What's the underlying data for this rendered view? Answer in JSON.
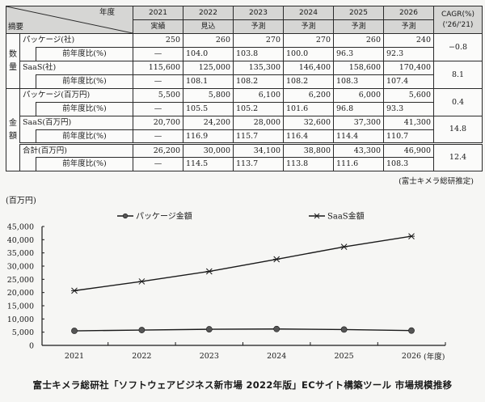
{
  "table": {
    "corner_top": "年度",
    "corner_bottom": "摘要",
    "years": [
      "2021",
      "2022",
      "2023",
      "2024",
      "2025",
      "2026"
    ],
    "status": [
      "実績",
      "見込",
      "予測",
      "予測",
      "予測",
      "予測"
    ],
    "cagr_header_line1": "CAGR(%)",
    "cagr_header_line2": "('26/'21)",
    "groups": [
      {
        "label": "数量",
        "items": [
          {
            "label": "パッケージ(社)",
            "values": [
              "250",
              "260",
              "270",
              "270",
              "260",
              "240"
            ],
            "yoy_label": "前年度比(%)",
            "yoy": [
              "—",
              "104.0",
              "103.8",
              "100.0",
              "96.3",
              "92.3"
            ],
            "cagr": "−0.8"
          },
          {
            "label": "SaaS(社)",
            "values": [
              "115,600",
              "125,000",
              "135,300",
              "146,400",
              "158,600",
              "170,400"
            ],
            "yoy_label": "前年度比(%)",
            "yoy": [
              "—",
              "108.1",
              "108.2",
              "108.2",
              "108.3",
              "107.4"
            ],
            "cagr": "8.1"
          }
        ]
      },
      {
        "label": "金額",
        "items": [
          {
            "label": "パッケージ(百万円)",
            "values": [
              "5,500",
              "5,800",
              "6,100",
              "6,200",
              "6,000",
              "5,600"
            ],
            "yoy_label": "前年度比(%)",
            "yoy": [
              "—",
              "105.5",
              "105.2",
              "101.6",
              "96.8",
              "93.3"
            ],
            "cagr": "0.4"
          },
          {
            "label": "SaaS(百万円)",
            "values": [
              "20,700",
              "24,200",
              "28,000",
              "32,600",
              "37,300",
              "41,300"
            ],
            "yoy_label": "前年度比(%)",
            "yoy": [
              "—",
              "116.9",
              "115.7",
              "116.4",
              "114.4",
              "110.7"
            ],
            "cagr": "14.8"
          },
          {
            "label": "合計(百万円)",
            "values": [
              "26,200",
              "30,000",
              "34,100",
              "38,800",
              "43,300",
              "46,900"
            ],
            "yoy_label": "前年度比(%)",
            "yoy": [
              "—",
              "114.5",
              "113.7",
              "113.8",
              "111.6",
              "108.3"
            ],
            "cagr": "12.4"
          }
        ]
      }
    ],
    "source_note": "(富士キメラ総研推定)"
  },
  "chart_data": {
    "type": "line",
    "title": "",
    "ylabel": "(百万円)",
    "xlabel": "(年度)",
    "x": [
      "2021",
      "2022",
      "2023",
      "2024",
      "2025",
      "2026"
    ],
    "ylim": [
      0,
      45000
    ],
    "yticks": [
      0,
      5000,
      10000,
      15000,
      20000,
      25000,
      30000,
      35000,
      40000,
      45000
    ],
    "ytick_labels": [
      "0",
      "5,000",
      "10,000",
      "15,000",
      "20,000",
      "25,000",
      "30,000",
      "35,000",
      "40,000",
      "45,000"
    ],
    "grid": false,
    "legend_position": "top",
    "series": [
      {
        "name": "パッケージ金額",
        "marker": "circle",
        "values": [
          5500,
          5800,
          6100,
          6200,
          6000,
          5600
        ]
      },
      {
        "name": "SaaS金額",
        "marker": "asterisk",
        "values": [
          20700,
          24200,
          28000,
          32600,
          37300,
          41300
        ]
      }
    ]
  },
  "caption": "富士キメラ総研社「ソフトウェアビジネス新市場 2022年版」ECサイト構築ツール 市場規模推移",
  "colors": {
    "header_bg": "#d6d6d4",
    "line": "#1a1a1a",
    "marker_fill": "#555555"
  }
}
